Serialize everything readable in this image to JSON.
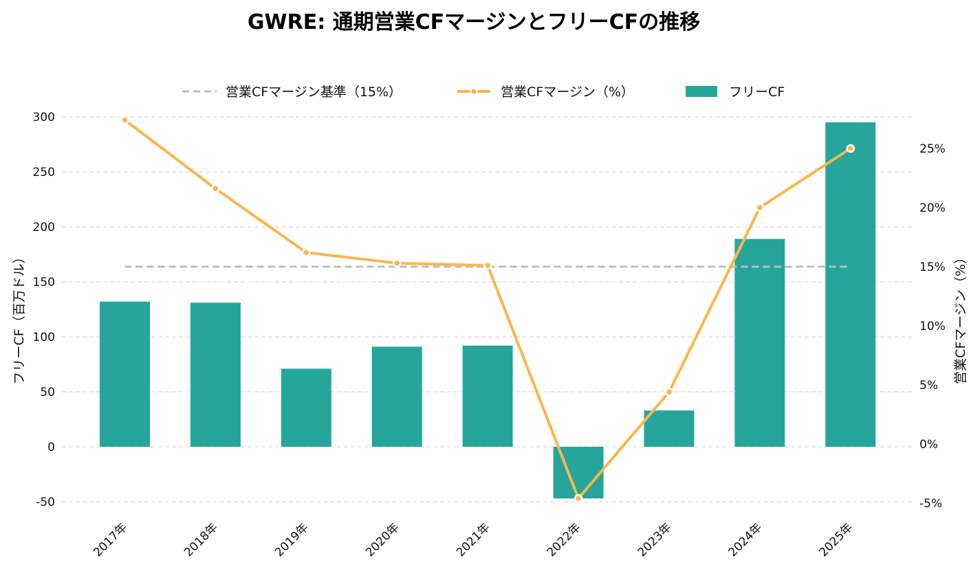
{
  "chart_data": {
    "type": "bar",
    "title": "GWRE: 通期営業CFマージンとフリーCFの推移",
    "categories": [
      "2017年",
      "2018年",
      "2019年",
      "2020年",
      "2021年",
      "2022年",
      "2023年",
      "2024年",
      "2025年"
    ],
    "series": [
      {
        "name": "フリーCF",
        "type": "bar",
        "axis": "left",
        "color": "#26a69a",
        "values": [
          132,
          131,
          71,
          91,
          92,
          -47,
          33,
          189,
          295
        ]
      },
      {
        "name": "営業CFマージン（%）",
        "type": "line",
        "axis": "right",
        "color": "#f9b64b",
        "values": [
          27.4,
          21.6,
          16.2,
          15.3,
          15.1,
          -4.6,
          4.4,
          20.0,
          25.0
        ]
      },
      {
        "name": "営業CFマージン基準（15%）",
        "type": "line",
        "style": "dashed",
        "axis": "right",
        "color": "#bdbdbd",
        "values": [
          15,
          15,
          15,
          15,
          15,
          15,
          15,
          15,
          15
        ]
      }
    ],
    "ylabel": "フリーCF（百万ドル）",
    "ylabel_right": "営業CFマージン（%）",
    "ylim": [
      -50,
      300
    ],
    "yticks": [
      "-50",
      "0",
      "50",
      "100",
      "150",
      "200",
      "250",
      "300"
    ],
    "ylim_right": [
      -5,
      25
    ],
    "yticks_right": [
      "-5%",
      "0%",
      "5%",
      "10%",
      "15%",
      "20%",
      "25%"
    ],
    "grid": true,
    "legend": "top-center",
    "legend_entries": [
      "営業CFマージン基準（15%）",
      "営業CFマージン（%）",
      "フリーCF"
    ]
  }
}
